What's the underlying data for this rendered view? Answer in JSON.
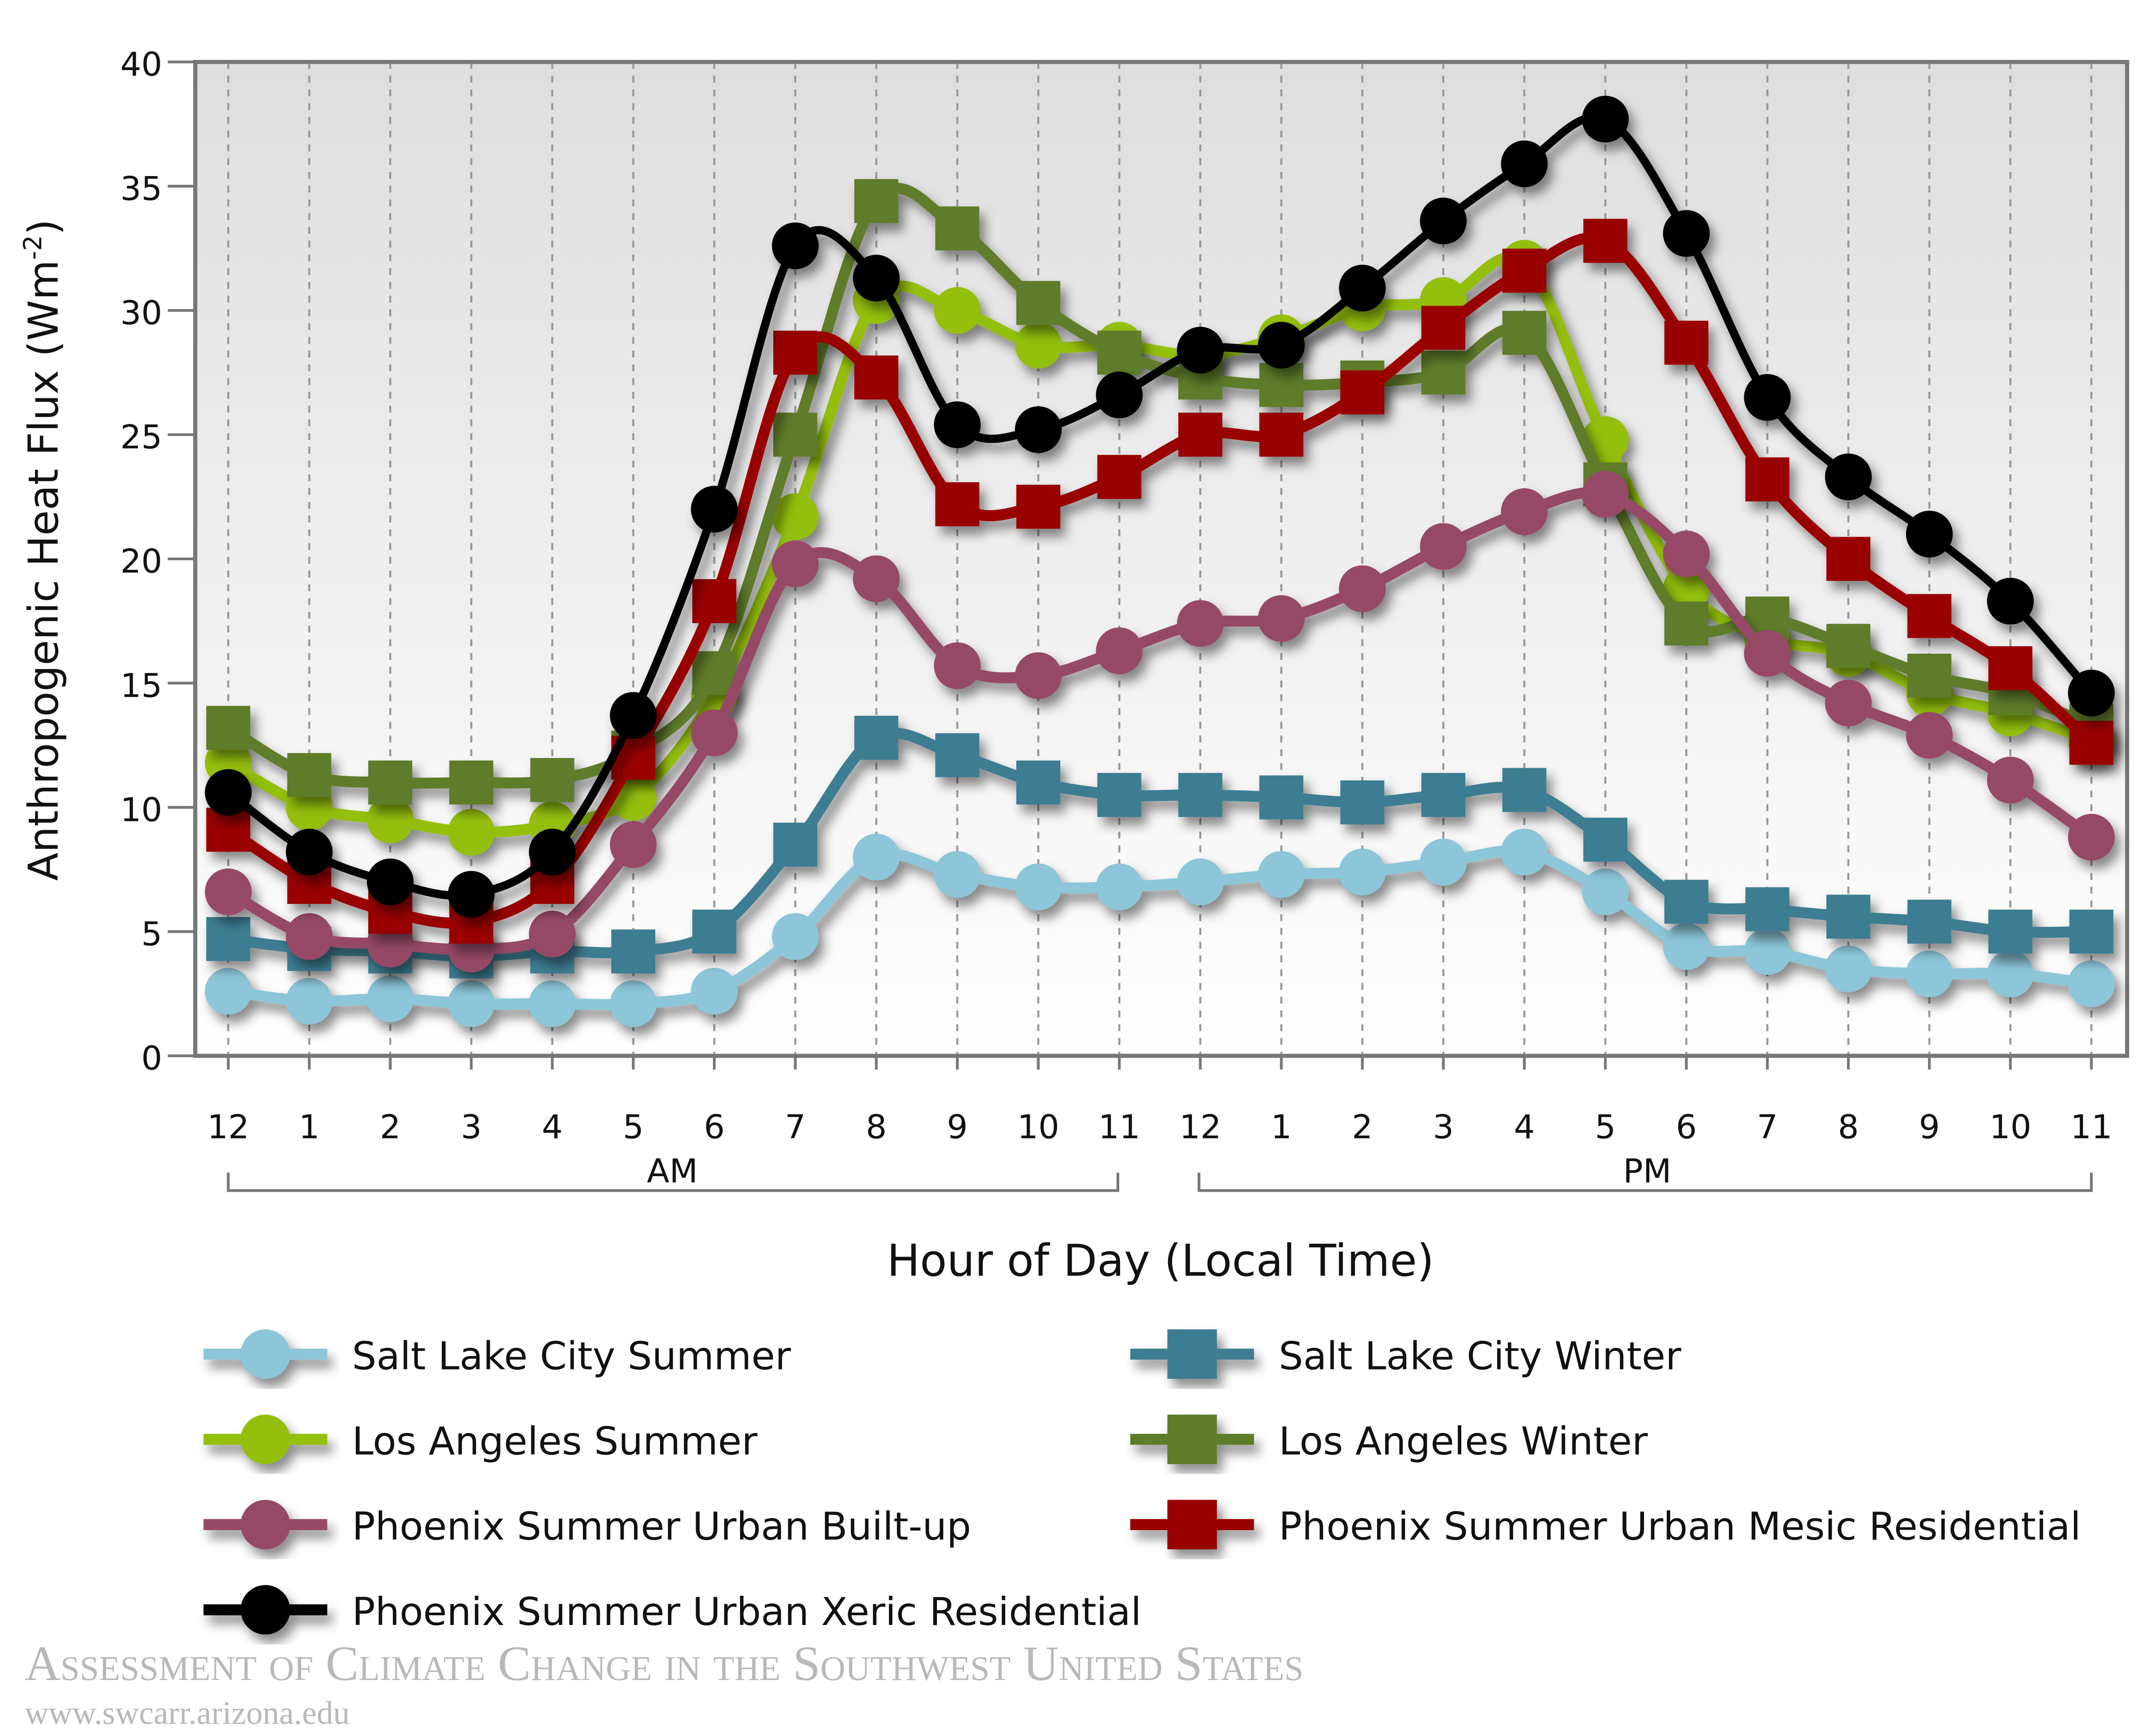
{
  "chart_data": {
    "type": "line",
    "xlabel": "Hour of Day (Local Time)",
    "ylabel": "Anthropogenic Heat Flux (Wm",
    "ylabel_sup": "-2",
    "ylabel_end": ")",
    "ylim": [
      0,
      40
    ],
    "yticks": [
      "0",
      "5",
      "10",
      "15",
      "20",
      "25",
      "30",
      "35",
      "40"
    ],
    "categories": [
      "12",
      "1",
      "2",
      "3",
      "4",
      "5",
      "6",
      "7",
      "8",
      "9",
      "10",
      "11",
      "12",
      "1",
      "2",
      "3",
      "4",
      "5",
      "6",
      "7",
      "8",
      "9",
      "10",
      "11"
    ],
    "period_labels": [
      "AM",
      "PM"
    ],
    "grid": "vertical dashed",
    "legend_placement": "bottom",
    "series": [
      {
        "name": "Salt Lake City Summer",
        "marker": "circle",
        "color": "#8cc6d8",
        "values": [
          2.6,
          2.2,
          2.3,
          2.1,
          2.1,
          2.1,
          2.6,
          4.8,
          8.0,
          7.3,
          6.8,
          6.8,
          7.0,
          7.3,
          7.4,
          7.8,
          8.2,
          6.6,
          4.4,
          4.2,
          3.5,
          3.3,
          3.3,
          2.9
        ]
      },
      {
        "name": "Salt Lake City Winter",
        "marker": "square",
        "color": "#3e7d92",
        "values": [
          4.7,
          4.3,
          4.2,
          4.0,
          4.2,
          4.2,
          5.0,
          8.5,
          12.8,
          12.1,
          11.0,
          10.5,
          10.5,
          10.4,
          10.2,
          10.5,
          10.7,
          8.7,
          6.2,
          5.9,
          5.6,
          5.4,
          5.0,
          5.0
        ]
      },
      {
        "name": "Los Angeles Summer",
        "marker": "circle",
        "color": "#94bf10",
        "values": [
          11.8,
          10.0,
          9.5,
          9.0,
          9.3,
          10.4,
          14.5,
          21.7,
          30.4,
          30.0,
          28.6,
          28.6,
          28.2,
          28.9,
          30.1,
          30.4,
          31.9,
          24.8,
          18.8,
          16.8,
          16.2,
          14.6,
          13.8,
          12.7
        ]
      },
      {
        "name": "Los Angeles Winter",
        "marker": "square",
        "color": "#5f7b2b",
        "values": [
          13.2,
          11.3,
          11.0,
          11.0,
          11.1,
          12.2,
          15.4,
          25.0,
          34.4,
          33.3,
          30.3,
          28.3,
          27.3,
          27.0,
          27.1,
          27.5,
          29.1,
          23.0,
          17.4,
          17.6,
          16.5,
          15.3,
          14.6,
          13.3
        ]
      },
      {
        "name": "Phoenix Summer Urban Built-up",
        "marker": "circle",
        "color": "#964866",
        "values": [
          6.6,
          4.8,
          4.5,
          4.3,
          4.9,
          8.5,
          13.0,
          19.8,
          19.2,
          15.7,
          15.3,
          16.3,
          17.4,
          17.6,
          18.8,
          20.5,
          21.9,
          22.6,
          20.2,
          16.2,
          14.2,
          12.9,
          11.1,
          8.8
        ]
      },
      {
        "name": "Phoenix Summer Urban Mesic Residential",
        "marker": "square",
        "color": "#990000",
        "values": [
          9.1,
          7.0,
          5.8,
          5.4,
          7.0,
          12.0,
          18.3,
          28.3,
          27.3,
          22.2,
          22.1,
          23.3,
          25.0,
          25.0,
          26.7,
          29.3,
          31.6,
          32.8,
          28.7,
          23.2,
          20.0,
          17.7,
          15.6,
          12.6
        ]
      },
      {
        "name": "Phoenix Summer Urban Xeric Residential",
        "marker": "circle",
        "color": "#000000",
        "values": [
          10.6,
          8.2,
          7.0,
          6.5,
          8.2,
          13.7,
          22.0,
          32.6,
          31.3,
          25.4,
          25.2,
          26.6,
          28.4,
          28.6,
          30.9,
          33.6,
          35.9,
          37.7,
          33.1,
          26.5,
          23.3,
          21.0,
          18.3,
          14.6
        ]
      }
    ]
  },
  "watermark": {
    "title": "Assessment of Climate Change in the Southwest United States",
    "url": "www.swcarr.arizona.edu"
  }
}
